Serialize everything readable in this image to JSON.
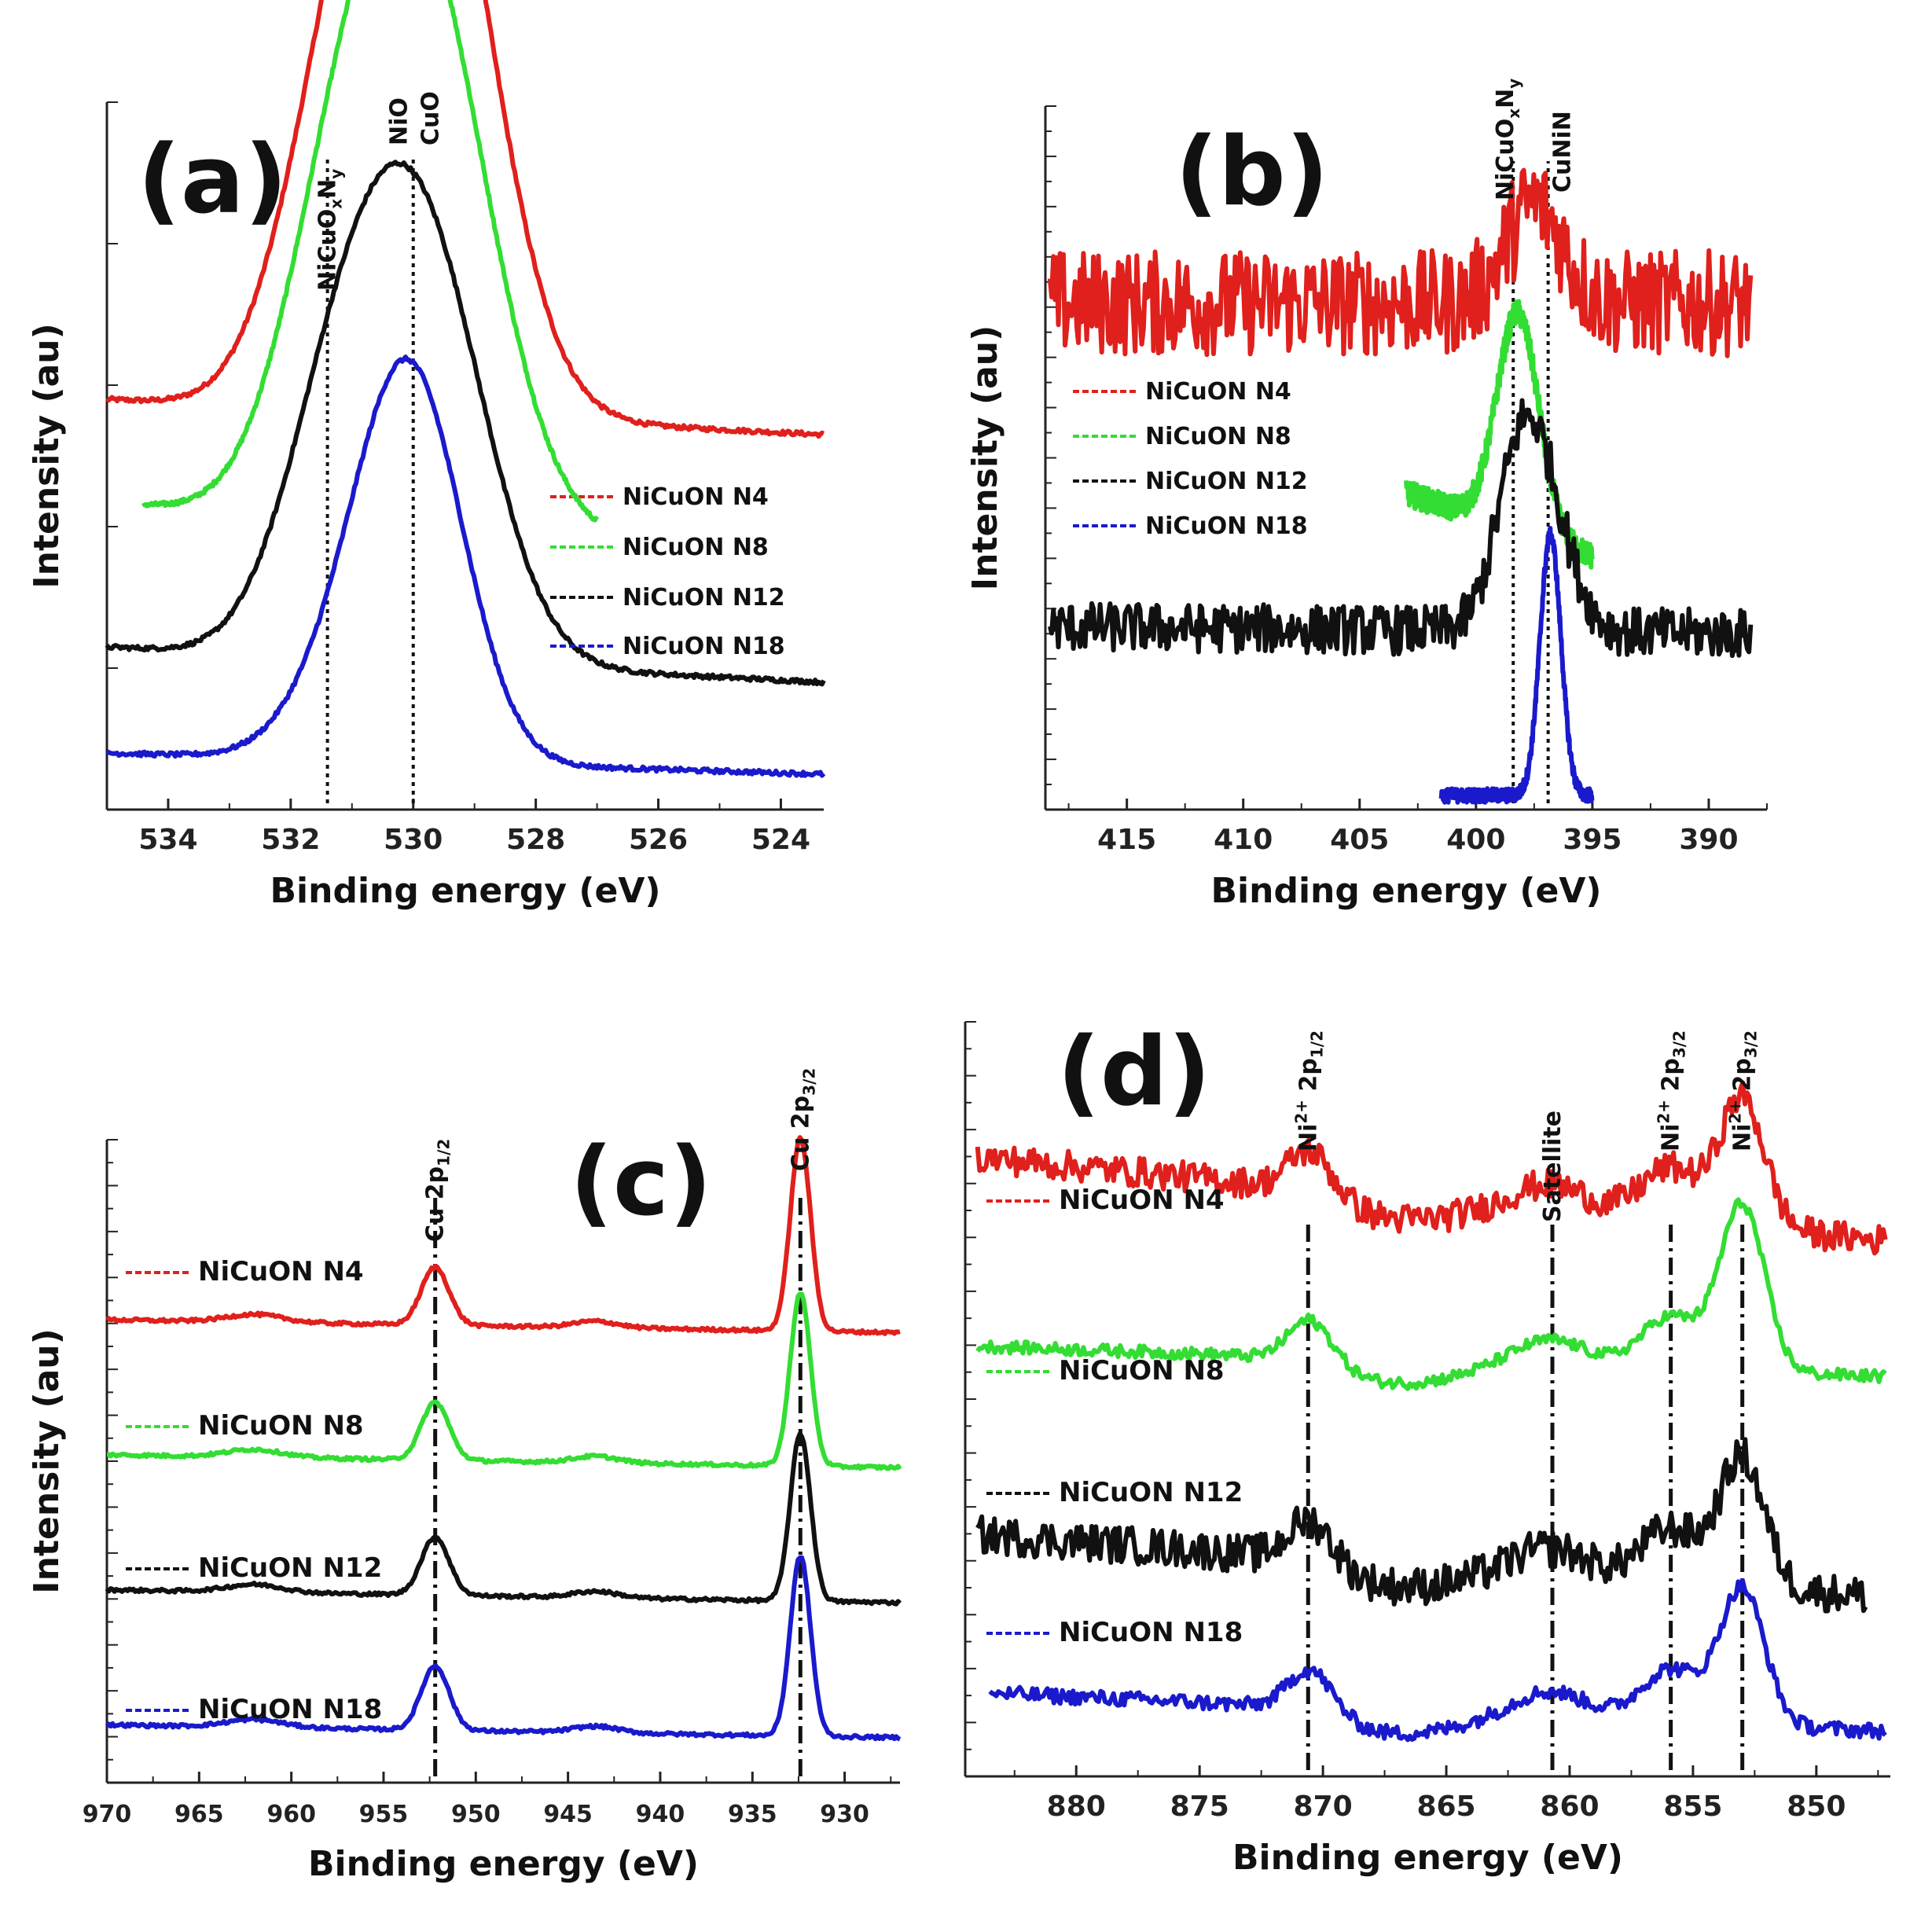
{
  "chart_data": [
    {
      "panel": "(a)",
      "type": "line",
      "xlabel": "Binding energy (eV)",
      "ylabel": "Intensity (au)",
      "xlim": [
        535,
        523.3
      ],
      "x_ticks": [
        534,
        532,
        530,
        528,
        526,
        524
      ],
      "x_tick_labels": [
        "534",
        "532",
        "530",
        "528",
        "526",
        "524"
      ],
      "annotations": [
        {
          "text": "NiCuO",
          "sub": "x",
          "text2": "N",
          "sub2": "y",
          "x": 531.4
        },
        {
          "text": "NiO",
          "x": 530.0
        },
        {
          "text": "CuO",
          "x": 530.0
        }
      ],
      "series": [
        {
          "name": "NiCuON N4",
          "color": "#e0201c",
          "x_range": [
            535,
            523.3
          ],
          "baseline": 0.58,
          "tail": 0.53,
          "peak_x": 529.9,
          "peak_h": 0.95,
          "width": 1.1,
          "shoulder_x": 531.4,
          "shoulder_h": 0.25
        },
        {
          "name": "NiCuON N8",
          "color": "#33dd33",
          "x_range": [
            534.4,
            527.0
          ],
          "baseline": 0.43,
          "tail": 0.38,
          "peak_x": 530.0,
          "peak_h": 0.84,
          "width": 1.15,
          "shoulder_x": 531.4,
          "shoulder_h": 0.2
        },
        {
          "name": "NiCuON N12",
          "color": "#111111",
          "x_range": [
            535,
            523.3
          ],
          "baseline": 0.23,
          "tail": 0.18,
          "peak_x": 529.9,
          "peak_h": 0.6,
          "width": 1.05,
          "shoulder_x": 531.3,
          "shoulder_h": 0.27
        },
        {
          "name": "NiCuON N18",
          "color": "#1a1acc",
          "x_range": [
            535,
            523.3
          ],
          "baseline": 0.08,
          "tail": 0.05,
          "peak_x": 530.0,
          "peak_h": 0.5,
          "width": 0.85,
          "shoulder_x": 531.0,
          "shoulder_h": 0.12
        }
      ]
    },
    {
      "panel": "(b)",
      "type": "line",
      "xlabel": "Binding energy (eV)",
      "ylabel": "Intensity (au)",
      "xlim": [
        418.5,
        387.5
      ],
      "x_ticks": [
        415,
        410,
        405,
        400,
        395,
        390
      ],
      "x_tick_labels": [
        "415",
        "410",
        "405",
        "400",
        "395",
        "390"
      ],
      "annotations": [
        {
          "text": "NiCuO",
          "sub": "x",
          "text2": "N",
          "sub2": "y",
          "x": 398.4
        },
        {
          "text": "CuNiN",
          "x": 396.9
        }
      ],
      "series": [
        {
          "name": "NiCuON N4",
          "color": "#e0201c",
          "x_range": [
            418.3,
            388.2
          ],
          "baseline": 0.72,
          "tail": 0.72,
          "peak_x": 397.5,
          "peak_h": 0.14,
          "width": 1.2,
          "noise": 0.075
        },
        {
          "name": "NiCuON N8",
          "color": "#33dd33",
          "x_range": [
            403.0,
            395.0
          ],
          "baseline": 0.45,
          "tail": 0.36,
          "peak_x": 398.2,
          "peak_h": 0.31,
          "width": 0.9,
          "noise": 0.018
        },
        {
          "name": "NiCuON N12",
          "color": "#111111",
          "x_range": [
            418.3,
            388.2
          ],
          "baseline": 0.26,
          "tail": 0.25,
          "peak_x": 397.3,
          "peak_h": 0.21,
          "width": 1.2,
          "noise": 0.035,
          "step_x": 399.0
        },
        {
          "name": "NiCuON N18",
          "color": "#1a1acc",
          "x_range": [
            401.5,
            395.0
          ],
          "baseline": 0.02,
          "tail": 0.02,
          "peak_x": 396.8,
          "peak_h": 0.37,
          "width": 0.45,
          "noise": 0.01
        }
      ]
    },
    {
      "panel": "(c)",
      "type": "line",
      "xlabel": "Binding energy (eV)",
      "ylabel": "Intensity (au)",
      "xlim": [
        970,
        927
      ],
      "x_ticks": [
        970,
        965,
        960,
        955,
        950,
        945,
        940,
        935,
        930
      ],
      "x_tick_labels": [
        "970",
        "965",
        "960",
        "955",
        "950",
        "945",
        "940",
        "935",
        "930"
      ],
      "annotations": [
        {
          "text": "Cu 2p",
          "sub": "1/2",
          "x": 952.2
        },
        {
          "text": "Cu 2p",
          "sub": "3/2",
          "x": 932.4
        }
      ],
      "series": [
        {
          "name": "NiCuON N4",
          "color": "#e0201c",
          "x_range": [
            970,
            927
          ],
          "baseline": 0.72,
          "tail": 0.7,
          "peak1_x": 952.2,
          "peak1_h": 0.09,
          "peak2_x": 932.4,
          "peak2_h": 0.3
        },
        {
          "name": "NiCuON N8",
          "color": "#33dd33",
          "x_range": [
            970,
            927
          ],
          "baseline": 0.51,
          "tail": 0.49,
          "peak1_x": 952.2,
          "peak1_h": 0.09,
          "peak2_x": 932.4,
          "peak2_h": 0.27
        },
        {
          "name": "NiCuON N12",
          "color": "#111111",
          "x_range": [
            970,
            927
          ],
          "baseline": 0.3,
          "tail": 0.28,
          "peak1_x": 952.2,
          "peak1_h": 0.09,
          "peak2_x": 932.4,
          "peak2_h": 0.26
        },
        {
          "name": "NiCuON N18",
          "color": "#1a1acc",
          "x_range": [
            970,
            927
          ],
          "baseline": 0.09,
          "tail": 0.07,
          "peak1_x": 952.2,
          "peak1_h": 0.1,
          "peak2_x": 932.4,
          "peak2_h": 0.28
        }
      ]
    },
    {
      "panel": "(d)",
      "type": "line",
      "xlabel": "Binding energy (eV)",
      "ylabel": "",
      "xlim": [
        884.5,
        847
      ],
      "x_ticks": [
        880,
        875,
        870,
        865,
        860,
        855,
        850
      ],
      "x_tick_labels": [
        "880",
        "875",
        "870",
        "865",
        "860",
        "855",
        "850"
      ],
      "annotations": [
        {
          "text": "Ni",
          "sup": "2+",
          "text2": " 2p",
          "sub2": "1/2",
          "x": 870.6
        },
        {
          "text": "Satellite",
          "x": 860.7
        },
        {
          "text": "Ni",
          "sup": "2+",
          "text2": " 2p",
          "sub2": "3/2",
          "x": 855.9
        },
        {
          "text": "Ni",
          "sup": "2+",
          "text2": " 2p",
          "sub2": "3/2",
          "x": 853.0
        }
      ],
      "series": [
        {
          "name": "NiCuON N4",
          "color": "#e0201c",
          "x_range": [
            884.0,
            847.2
          ],
          "baseline": 0.82,
          "tail": 0.71,
          "peak_x": 853.0,
          "peak_h": 0.17,
          "noise": 0.02
        },
        {
          "name": "NiCuON N8",
          "color": "#33dd33",
          "x_range": [
            884.0,
            847.2
          ],
          "baseline": 0.57,
          "tail": 0.53,
          "peak_x": 853.0,
          "peak_h": 0.22,
          "noise": 0.008
        },
        {
          "name": "NiCuON N12",
          "color": "#111111",
          "x_range": [
            884.0,
            848.0
          ],
          "baseline": 0.32,
          "tail": 0.24,
          "peak_x": 853.0,
          "peak_h": 0.17,
          "noise": 0.025
        },
        {
          "name": "NiCuON N18",
          "color": "#1a1acc",
          "x_range": [
            883.5,
            847.2
          ],
          "baseline": 0.11,
          "tail": 0.06,
          "peak_x": 853.0,
          "peak_h": 0.18,
          "noise": 0.01
        }
      ]
    }
  ]
}
